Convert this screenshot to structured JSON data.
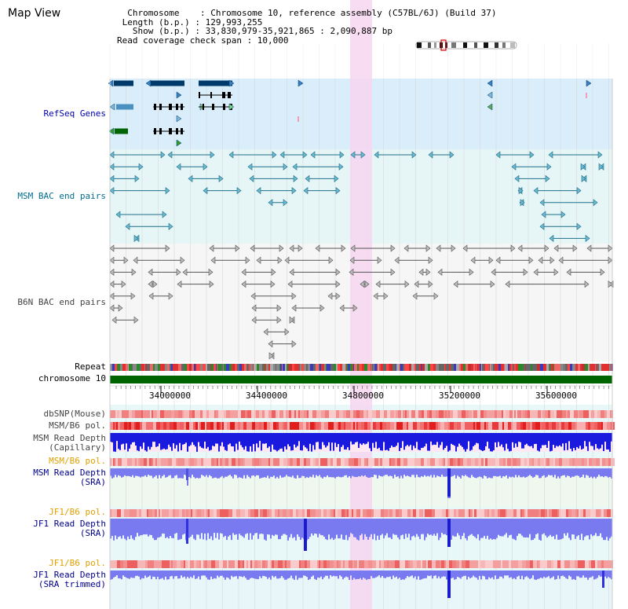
{
  "header": {
    "title": "Map View",
    "info_lines": [
      "  Chromosome    : Chromosome 10, reference assembly (C57BL/6J) (Build 37)",
      " Length (b.p.) : 129,993,255",
      "   Show (b.p.) : 33,830,979-35,921,865 : 2,090,887 bp",
      "Read coverage check span : 10,000"
    ]
  },
  "tracks": {
    "refseq_label": "RefSeq Genes",
    "msm_bac_label": "MSM BAC end pairs",
    "b6n_bac_label": "B6N BAC end pairs",
    "repeat_label": "Repeat",
    "chromosome_label": "chromosome 10",
    "dbsnp_label": "dbSNP(Mouse)",
    "msm_b6_pol_label_1": "MSM/B6 pol.",
    "msm_depth_cap_label": "MSM Read Depth\n(Capillary)",
    "msm_b6_pol_label_2": "MSM/B6 pol.",
    "msm_depth_sra_label": "MSM Read Depth\n(SRA)",
    "jf1_b6_pol_label_1": "JF1/B6 pol.",
    "jf1_depth_sra_label": "JF1 Read Depth\n(SRA)",
    "jf1_b6_pol_label_2": "JF1/B6 pol.",
    "jf1_depth_trim_label": "JF1 Read Depth\n(SRA trimmed)"
  },
  "axis": {
    "ticks": [
      "34000000",
      "34400000",
      "34800000",
      "35200000",
      "35600000"
    ]
  },
  "colors": {
    "refseq_bg": "#d9eefa",
    "bac_bg": "#e6f6f6",
    "highlight": "#f7d6f0",
    "chromosome": "#006400",
    "gene_dark": "#003a6b",
    "msm_bac": "#1f6f8b",
    "b6n_bac": "#666666",
    "depth_capillary": "#1a1adf",
    "depth_sra": "#7a7af0"
  }
}
